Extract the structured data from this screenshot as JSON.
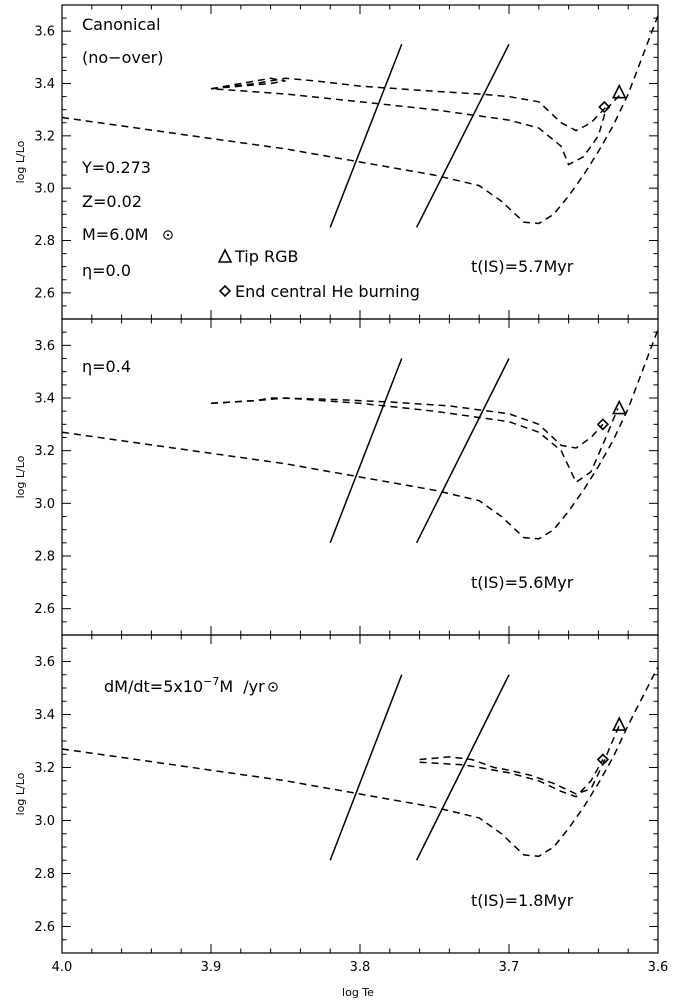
{
  "chart_data": [
    {
      "type": "line",
      "xlabel": "",
      "ylabel": "log L/Lo",
      "xlim": [
        4.0,
        3.6
      ],
      "ylim": [
        2.5,
        3.7
      ],
      "yticks": [
        "2.6",
        "2.8",
        "3.0",
        "3.2",
        "3.4",
        "3.6"
      ],
      "xticks": [],
      "annotations": [
        "Canonical",
        "(no−over)",
        "Y=0.273",
        "Z=0.02",
        "M=6.0M",
        "η=0.0",
        "t(IS)=5.7Myr"
      ],
      "legend": [
        "Tip RGB",
        "End central He burning"
      ],
      "instability_strip": [
        {
          "x": [
            3.82,
            3.772
          ],
          "y": [
            2.85,
            3.55
          ]
        },
        {
          "x": [
            3.762,
            3.7
          ],
          "y": [
            2.85,
            3.55
          ]
        }
      ],
      "series": [
        {
          "x": [
            4.0,
            3.95,
            3.9,
            3.85,
            3.8,
            3.75,
            3.72,
            3.705,
            3.69,
            3.68,
            3.67,
            3.66,
            3.65,
            3.64,
            3.63,
            3.62,
            3.6
          ],
          "y": [
            3.27,
            3.23,
            3.19,
            3.15,
            3.1,
            3.05,
            3.01,
            2.95,
            2.87,
            2.865,
            2.9,
            2.97,
            3.05,
            3.14,
            3.24,
            3.36,
            3.66
          ]
        },
        {
          "x": [
            3.9,
            3.88,
            3.86,
            3.85,
            3.86,
            3.88,
            3.9,
            3.85,
            3.8,
            3.75,
            3.7,
            3.68,
            3.665,
            3.66,
            3.65,
            3.64,
            3.635,
            3.625
          ],
          "y": [
            3.38,
            3.39,
            3.4,
            3.41,
            3.42,
            3.4,
            3.38,
            3.36,
            3.33,
            3.3,
            3.26,
            3.23,
            3.16,
            3.09,
            3.12,
            3.2,
            3.3,
            3.36
          ]
        },
        {
          "x": [
            3.9,
            3.87,
            3.85,
            3.83,
            3.8,
            3.75,
            3.72,
            3.7,
            3.68,
            3.665,
            3.655,
            3.645,
            3.635
          ],
          "y": [
            3.38,
            3.4,
            3.42,
            3.41,
            3.39,
            3.37,
            3.36,
            3.35,
            3.33,
            3.25,
            3.22,
            3.25,
            3.31
          ]
        }
      ],
      "markers": [
        {
          "label": "Tip RGB",
          "shape": "triangle",
          "x": 3.626,
          "y": 3.365
        },
        {
          "label": "End central He burning",
          "shape": "diamond",
          "x": 3.636,
          "y": 3.31
        }
      ]
    },
    {
      "type": "line",
      "xlabel": "",
      "ylabel": "log L/Lo",
      "xlim": [
        4.0,
        3.6
      ],
      "ylim": [
        2.5,
        3.7
      ],
      "yticks": [
        "2.6",
        "2.8",
        "3.0",
        "3.2",
        "3.4",
        "3.6"
      ],
      "xticks": [],
      "annotations": [
        "η=0.4",
        "t(IS)=5.6Myr"
      ],
      "instability_strip": [
        {
          "x": [
            3.82,
            3.772
          ],
          "y": [
            2.85,
            3.55
          ]
        },
        {
          "x": [
            3.762,
            3.7
          ],
          "y": [
            2.85,
            3.55
          ]
        }
      ],
      "series": [
        {
          "x": [
            4.0,
            3.95,
            3.9,
            3.85,
            3.8,
            3.75,
            3.72,
            3.705,
            3.69,
            3.68,
            3.67,
            3.66,
            3.65,
            3.64,
            3.63,
            3.62,
            3.6
          ],
          "y": [
            3.27,
            3.23,
            3.19,
            3.15,
            3.1,
            3.05,
            3.01,
            2.95,
            2.87,
            2.865,
            2.9,
            2.97,
            3.05,
            3.14,
            3.24,
            3.36,
            3.66
          ]
        },
        {
          "x": [
            3.9,
            3.87,
            3.85,
            3.8,
            3.75,
            3.7,
            3.68,
            3.665,
            3.655,
            3.645,
            3.635,
            3.627
          ],
          "y": [
            3.38,
            3.39,
            3.4,
            3.38,
            3.35,
            3.31,
            3.27,
            3.2,
            3.08,
            3.12,
            3.25,
            3.36
          ]
        },
        {
          "x": [
            3.9,
            3.87,
            3.86,
            3.82,
            3.78,
            3.74,
            3.7,
            3.68,
            3.665,
            3.655,
            3.645,
            3.637
          ],
          "y": [
            3.38,
            3.39,
            3.4,
            3.395,
            3.385,
            3.37,
            3.34,
            3.3,
            3.22,
            3.21,
            3.25,
            3.3
          ]
        }
      ],
      "markers": [
        {
          "label": "Tip RGB",
          "shape": "triangle",
          "x": 3.626,
          "y": 3.36
        },
        {
          "label": "End central He burning",
          "shape": "diamond",
          "x": 3.637,
          "y": 3.3
        }
      ]
    },
    {
      "type": "line",
      "xlabel": "log Te",
      "ylabel": "log L/Lo",
      "xlim": [
        4.0,
        3.6
      ],
      "ylim": [
        2.5,
        3.7
      ],
      "yticks": [
        "2.6",
        "2.8",
        "3.0",
        "3.2",
        "3.4",
        "3.6"
      ],
      "xticks": [
        "4.0",
        "3.9",
        "3.8",
        "3.7",
        "3.6"
      ],
      "annotations": [
        "dM/dt=5x10",
        "−7",
        "M",
        "/yr",
        "t(IS)=1.8Myr"
      ],
      "instability_strip": [
        {
          "x": [
            3.82,
            3.772
          ],
          "y": [
            2.85,
            3.55
          ]
        },
        {
          "x": [
            3.762,
            3.7
          ],
          "y": [
            2.85,
            3.55
          ]
        }
      ],
      "series": [
        {
          "x": [
            4.0,
            3.95,
            3.9,
            3.85,
            3.8,
            3.75,
            3.72,
            3.705,
            3.69,
            3.68,
            3.67,
            3.66,
            3.65,
            3.64,
            3.63,
            3.62,
            3.6
          ],
          "y": [
            3.27,
            3.23,
            3.19,
            3.15,
            3.1,
            3.05,
            3.01,
            2.95,
            2.87,
            2.865,
            2.9,
            2.97,
            3.05,
            3.14,
            3.24,
            3.36,
            3.58
          ]
        },
        {
          "x": [
            3.76,
            3.74,
            3.725,
            3.71,
            3.7,
            3.685,
            3.67,
            3.655,
            3.645,
            3.638,
            3.632,
            3.626
          ],
          "y": [
            3.23,
            3.24,
            3.23,
            3.2,
            3.19,
            3.17,
            3.14,
            3.1,
            3.12,
            3.2,
            3.28,
            3.36
          ]
        },
        {
          "x": [
            3.76,
            3.73,
            3.7,
            3.68,
            3.665,
            3.655,
            3.645,
            3.637
          ],
          "y": [
            3.22,
            3.21,
            3.18,
            3.15,
            3.11,
            3.09,
            3.15,
            3.23
          ]
        }
      ],
      "markers": [
        {
          "label": "Tip RGB",
          "shape": "triangle",
          "x": 3.626,
          "y": 3.36
        },
        {
          "label": "End central He burning",
          "shape": "diamond",
          "x": 3.637,
          "y": 3.23
        }
      ]
    }
  ]
}
